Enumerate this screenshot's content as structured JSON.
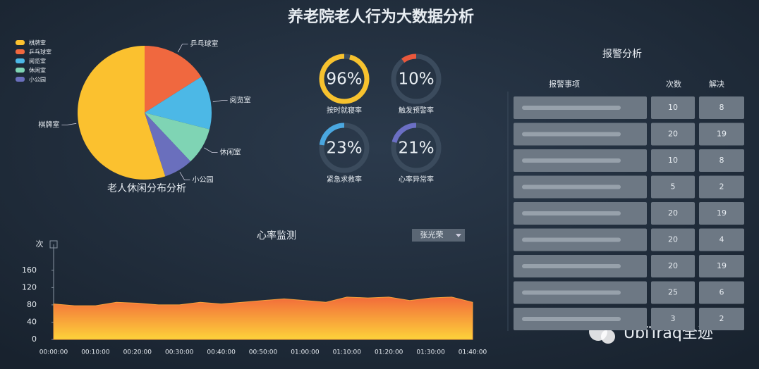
{
  "title": "养老院老人行为大数据分析",
  "chart_data": [
    {
      "type": "pie",
      "title": "老人休闲分布分析",
      "categories": [
        "棋牌室",
        "乒乓球室",
        "阅览室",
        "休闲室",
        "小公园"
      ],
      "values": [
        55,
        16,
        13,
        9,
        7
      ],
      "colors": [
        "#fbc12f",
        "#f0683f",
        "#4cb8e6",
        "#7fd4b4",
        "#6a6fbd"
      ],
      "legend": "top-left"
    },
    {
      "type": "gauge",
      "categories": [
        "按时就寝率",
        "触发预警率",
        "紧急求救率",
        "心率异常率"
      ],
      "values": [
        96,
        10,
        23,
        21
      ],
      "value_labels": [
        "96%",
        "10%",
        "23%",
        "21%"
      ],
      "colors": [
        "#f7c22e",
        "#e9583c",
        "#4aa7e0",
        "#6b6fc4"
      ],
      "ylim": [
        0,
        100
      ]
    },
    {
      "type": "area",
      "title": "心率监测",
      "y_label": "次",
      "selector": "张光荣",
      "x": [
        "00:00:00",
        null,
        "00:10:00",
        null,
        "00:20:00",
        null,
        "00:30:00",
        null,
        "00:40:00",
        null,
        "00:50:00",
        null,
        "01:00:00",
        null,
        "01:10:00",
        null,
        "01:20:00",
        null,
        "01:30:00",
        null,
        "01:40:00"
      ],
      "series": [
        {
          "name": "心率",
          "color": "#f7a03a",
          "values": [
            82,
            78,
            78,
            86,
            84,
            80,
            80,
            86,
            82,
            86,
            90,
            94,
            90,
            86,
            98,
            96,
            98,
            90,
            96,
            98,
            86
          ]
        }
      ],
      "ylim": [
        0,
        220
      ],
      "yticks": [
        0,
        40,
        80,
        120,
        160
      ]
    }
  ],
  "alarm": {
    "title": "报警分析",
    "headers": [
      "报警事项",
      "次数",
      "解决"
    ],
    "rows": [
      [
        10,
        8
      ],
      [
        20,
        19
      ],
      [
        10,
        8
      ],
      [
        5,
        2
      ],
      [
        20,
        19
      ],
      [
        20,
        4
      ],
      [
        20,
        19
      ],
      [
        25,
        6
      ],
      [
        3,
        2
      ]
    ]
  },
  "watermark": "UbiTraq全迹"
}
